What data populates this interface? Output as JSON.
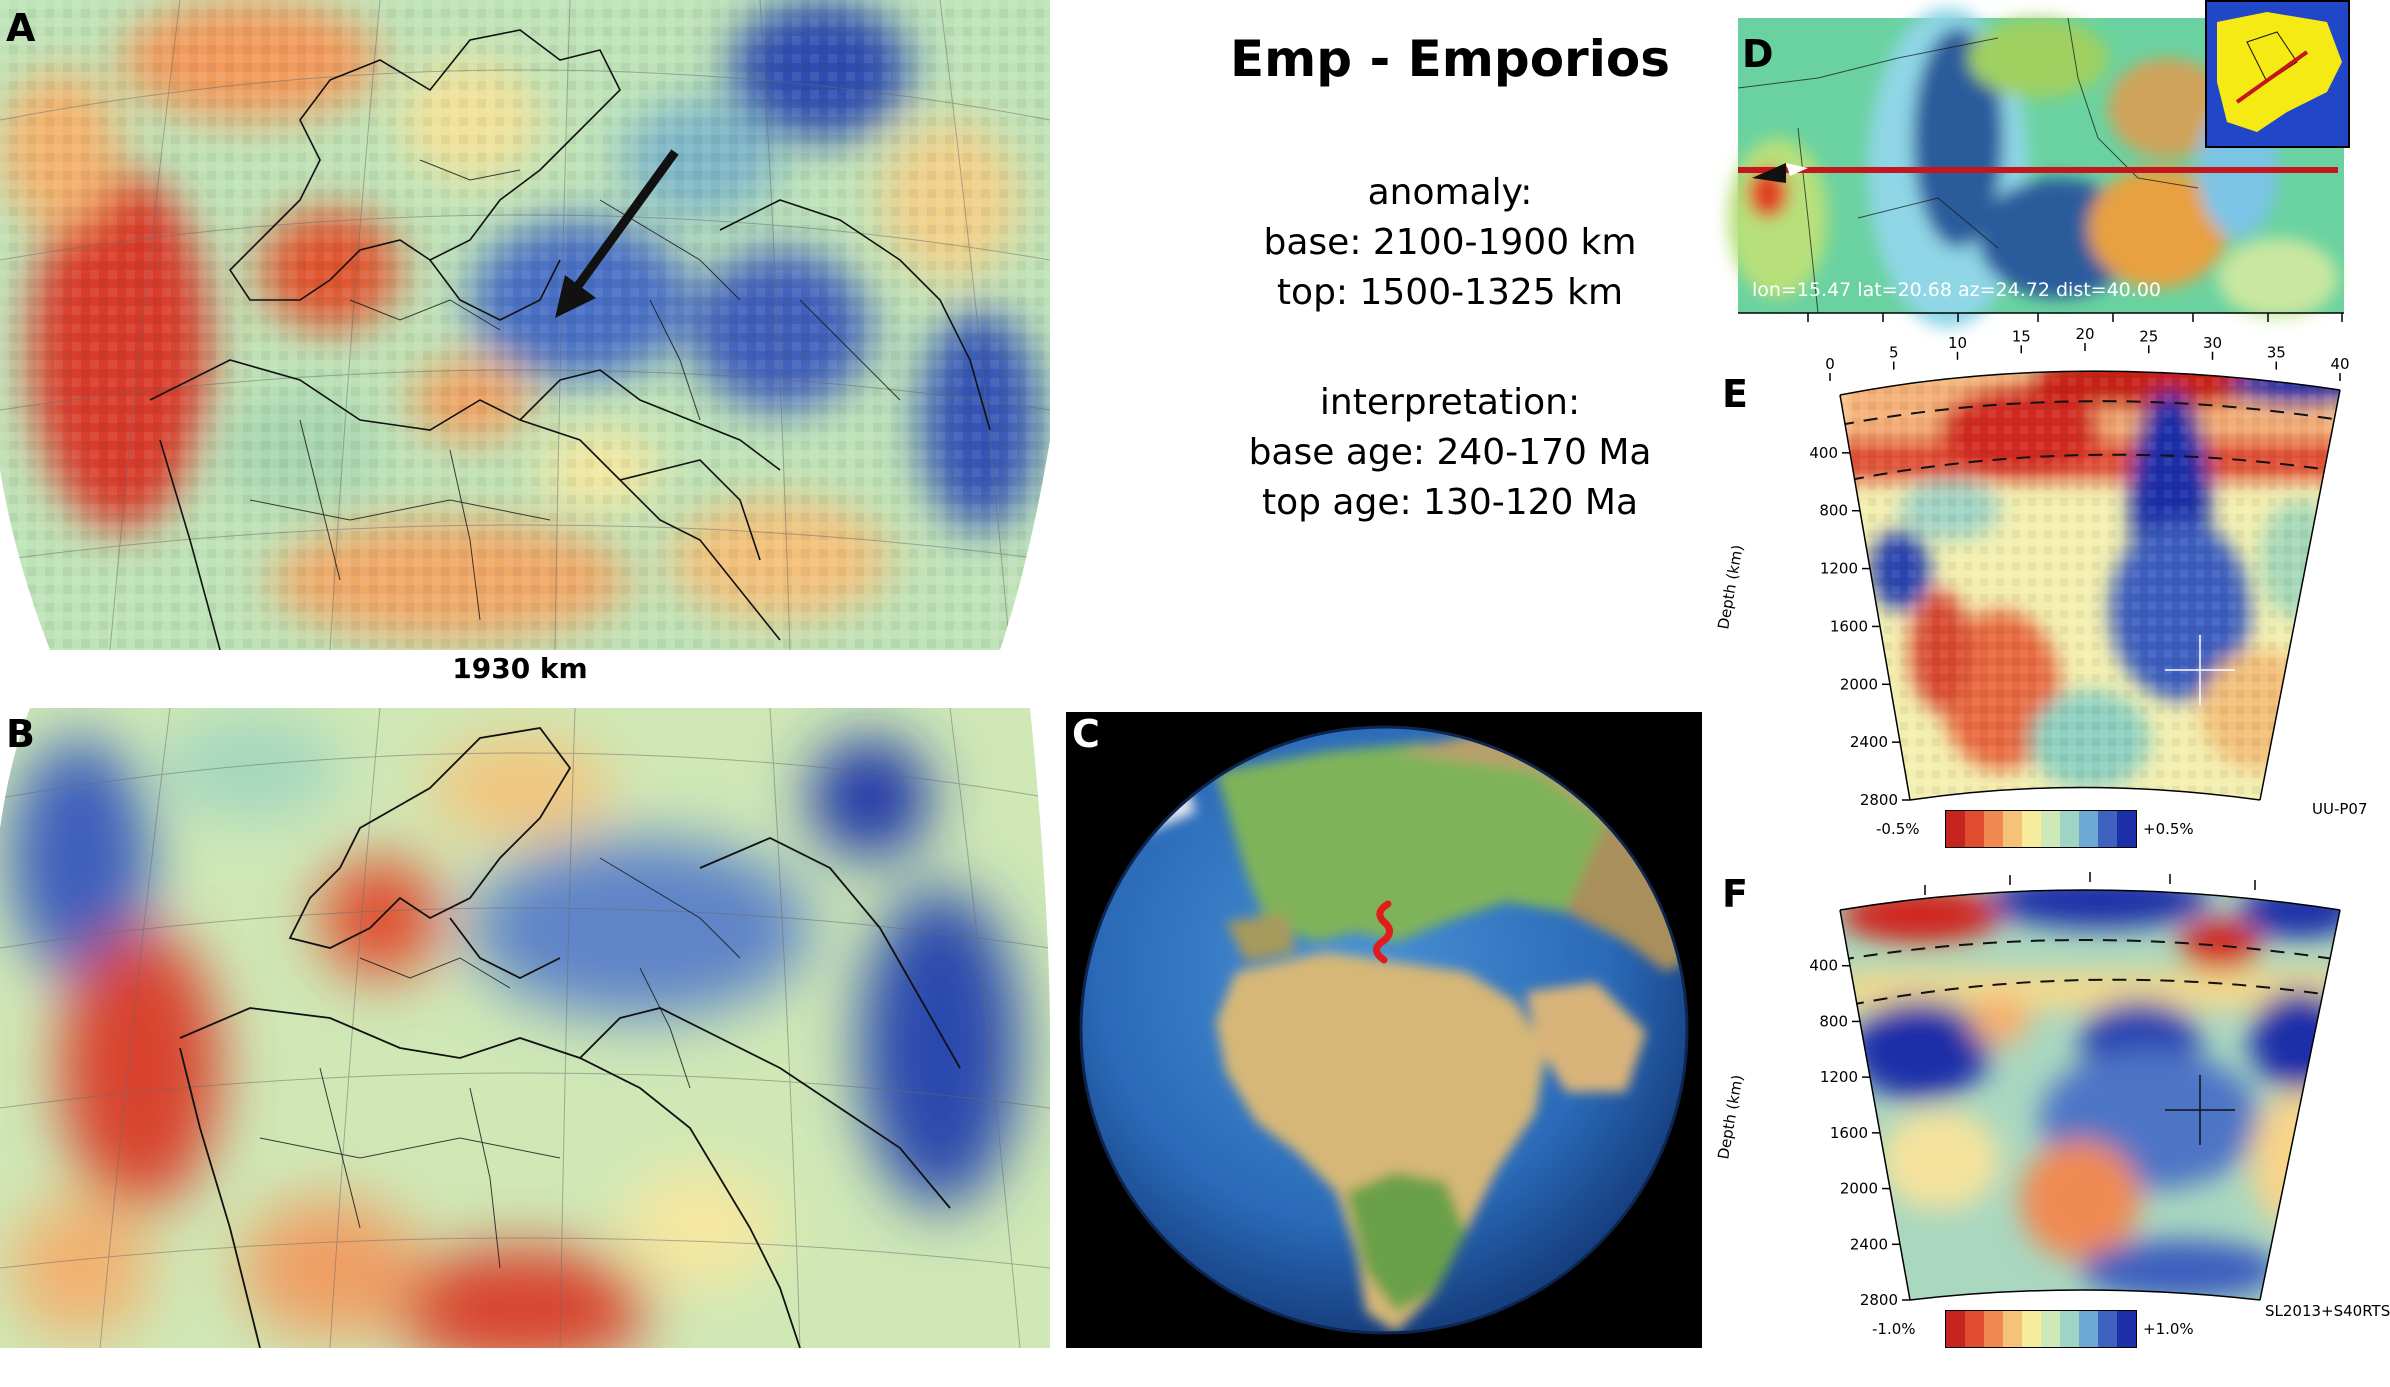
{
  "title": "Emp - Emporios",
  "anomaly": {
    "heading": "anomaly:",
    "base": "base: 2100-1900 km",
    "top": "top: 1500-1325 km"
  },
  "interpretation": {
    "heading": "interpretation:",
    "base_age": "base age: 240-170 Ma",
    "top_age": "top age: 130-120 Ma"
  },
  "panels": {
    "a": {
      "label": "A",
      "depth_label": "1930 km"
    },
    "b": {
      "label": "B"
    },
    "c": {
      "label": "C"
    },
    "d": {
      "label": "D",
      "readout": "lon=15.47 lat=20.68 az=24.72 dist=40.00"
    },
    "e": {
      "label": "E",
      "model": "UU-P07",
      "colorbar_min": "-0.5%",
      "colorbar_max": "+0.5%",
      "distance_ticks": [
        "0",
        "5",
        "10",
        "15",
        "20",
        "25",
        "30",
        "35",
        "40"
      ],
      "depth_axis_label": "Depth (km)",
      "depth_ticks": [
        "400",
        "800",
        "1200",
        "1600",
        "2000",
        "2400",
        "2800"
      ]
    },
    "f": {
      "label": "F",
      "model": "SL2013+S40RTS",
      "colorbar_min": "-1.0%",
      "colorbar_max": "+1.0%",
      "depth_axis_label": "Depth (km)",
      "depth_ticks": [
        "400",
        "800",
        "1200",
        "1600",
        "2000",
        "2400",
        "2800"
      ]
    }
  },
  "colors": {
    "fast": "#1c2fa8",
    "slow": "#c8241f",
    "neutral": "#f6f0a8",
    "ocean": "#2e6fbf",
    "section_line": "#c4161c"
  }
}
